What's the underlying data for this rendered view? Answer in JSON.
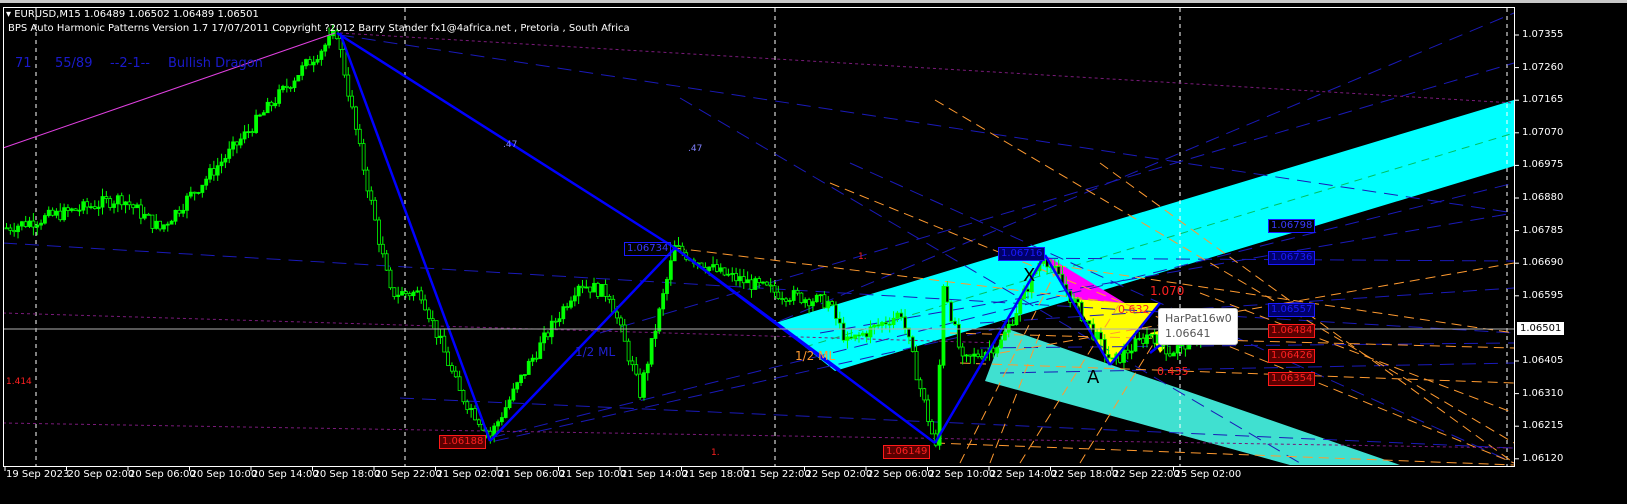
{
  "header": {
    "symbol_line": "EURUSD,M15  1.06489 1.06502 1.06489 1.06501",
    "indicator_line": "BPS Auto Harmonic Patterns Version 1.7 17/07/2011     Copyright ?2012     Barry Stander        fx1@4africa.net  ,    Pretoria   ,   South Africa",
    "pattern_info": {
      "a": "71",
      "b": "55/89",
      "c": "--2-1--",
      "d": "Bullish Dragon"
    }
  },
  "price_axis": {
    "ticks": [
      "1.07355",
      "1.07260",
      "1.07165",
      "1.07070",
      "1.06975",
      "1.06880",
      "1.06785",
      "1.06690",
      "1.06595",
      "1.06501",
      "1.06405",
      "1.06310",
      "1.06215",
      "1.06120"
    ],
    "current_price": "1.06501"
  },
  "time_axis": {
    "ticks": [
      "19 Sep 2023",
      "20 Sep 02:00",
      "20 Sep 06:00",
      "20 Sep 10:00",
      "20 Sep 14:00",
      "20 Sep 18:00",
      "20 Sep 22:00",
      "21 Sep 02:00",
      "21 Sep 06:00",
      "21 Sep 10:00",
      "21 Sep 14:00",
      "21 Sep 18:00",
      "21 Sep 22:00",
      "22 Sep 02:00",
      "22 Sep 06:00",
      "22 Sep 10:00",
      "22 Sep 14:00",
      "22 Sep 18:00",
      "22 Sep 22:00",
      "25 Sep 02:00"
    ]
  },
  "chart": {
    "candle_color": "#00ff00",
    "price_pivots": [
      [
        0,
        1.06793
      ],
      [
        30,
        1.0688
      ],
      [
        40,
        1.0679
      ],
      [
        58,
        1.07011
      ],
      [
        76,
        1.07244
      ],
      [
        86,
        1.07361
      ],
      [
        92,
        1.0702
      ],
      [
        100,
        1.06603
      ],
      [
        108,
        1.06603
      ],
      [
        118,
        1.06312
      ],
      [
        126,
        1.06188
      ],
      [
        136,
        1.06395
      ],
      [
        149,
        1.06633
      ],
      [
        157,
        1.066
      ],
      [
        165,
        1.06312
      ],
      [
        174,
        1.06734
      ],
      [
        186,
        1.0666
      ],
      [
        201,
        1.06603
      ],
      [
        214,
        1.06575
      ],
      [
        219,
        1.06458
      ],
      [
        233,
        1.06546
      ],
      [
        242,
        1.06149
      ],
      [
        244,
        1.06633
      ],
      [
        249,
        1.064
      ],
      [
        259,
        1.0646
      ],
      [
        270,
        1.06716
      ],
      [
        288,
        1.06399
      ],
      [
        298,
        1.06488
      ],
      [
        303,
        1.0643
      ],
      [
        314,
        1.06501
      ]
    ],
    "price_labels": {
      "high_1": "1.06734",
      "low_1": "1.06188",
      "low_2": "1.06149",
      "high_2": "1.06716",
      "right": [
        "1.06798",
        "1.06736",
        "1.06557",
        "1.06484",
        "1.06426",
        "1.06354"
      ]
    },
    "annotations": {
      "fib_1414": "1.414",
      "one_a": "1.",
      "one_b": "1.",
      "r47_a": ".47",
      "r47_b": ".47",
      "half_ml_a": "1/2 ML",
      "half_ml_b": "1/2 ML",
      "point_x": "X",
      "point_a": "A",
      "r1070": "1.070",
      "r0632": "0.632",
      "r0435": "0.435"
    },
    "tooltip": {
      "name": "HarPat16w0",
      "value": "1.06641"
    },
    "colors": {
      "channel_upper": "#00ffff",
      "channel_lower": "#40e0d0",
      "pattern_fill": "#ffff00",
      "pattern_fill_2": "#ff00ff",
      "pattern_lines": "#0000ff"
    }
  }
}
